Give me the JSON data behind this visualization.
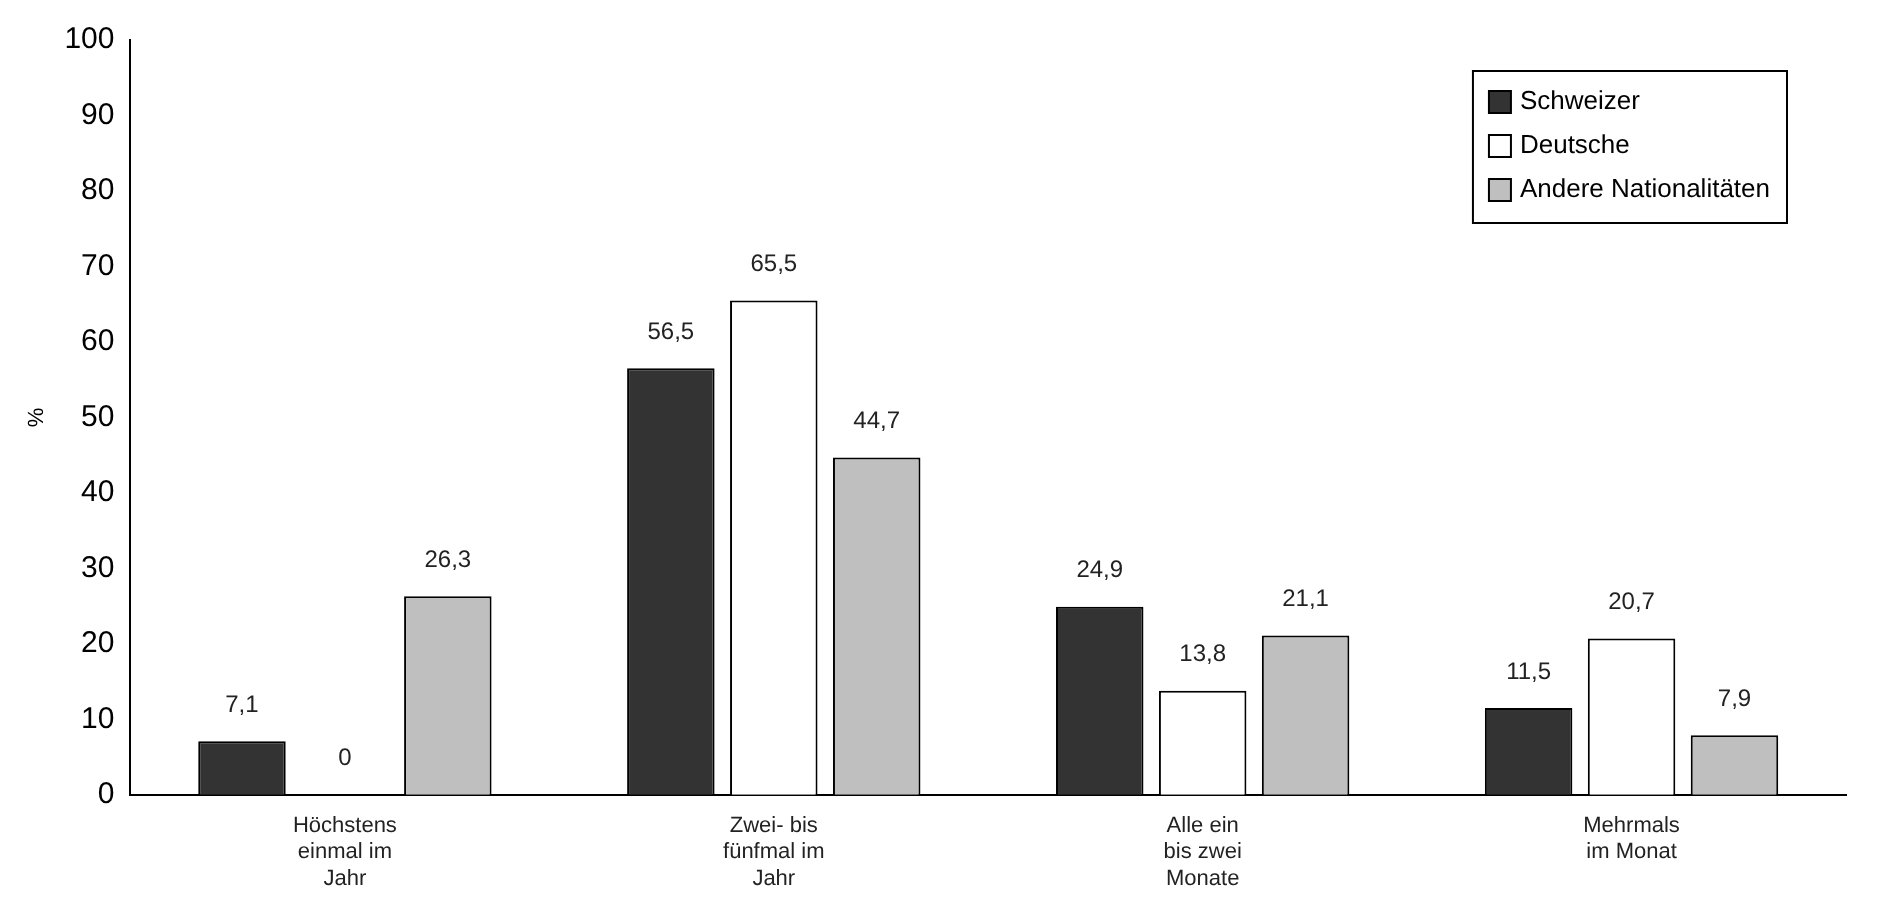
{
  "chart_data": {
    "type": "bar",
    "ylabel": "%",
    "categories": [
      "Höchstens einmal im Jahr",
      "Zwei- bis fünfmal im Jahr",
      "Alle ein bis zwei Monate",
      "Mehrmals im Monat"
    ],
    "series": [
      {
        "name": "Schweizer",
        "color": "#333333",
        "values": [
          7.1,
          56.5,
          24.9,
          11.5
        ],
        "value_labels": [
          "7,1",
          "56,5",
          "24,9",
          "11,5"
        ]
      },
      {
        "name": "Deutsche",
        "color": "#ffffff",
        "values": [
          0,
          65.5,
          13.8,
          20.7
        ],
        "value_labels": [
          "0",
          "65,5",
          "13,8",
          "20,7"
        ]
      },
      {
        "name": "Andere Nationalitäten",
        "color": "#bfbfbf",
        "values": [
          26.3,
          44.7,
          21.1,
          7.9
        ],
        "value_labels": [
          "26,3",
          "44,7",
          "21,1",
          "7,9"
        ]
      }
    ],
    "ylim": [
      0,
      100
    ],
    "yticks": [
      0,
      10,
      20,
      30,
      40,
      50,
      60,
      70,
      80,
      90,
      100
    ],
    "grid": false,
    "legend": "top right"
  }
}
